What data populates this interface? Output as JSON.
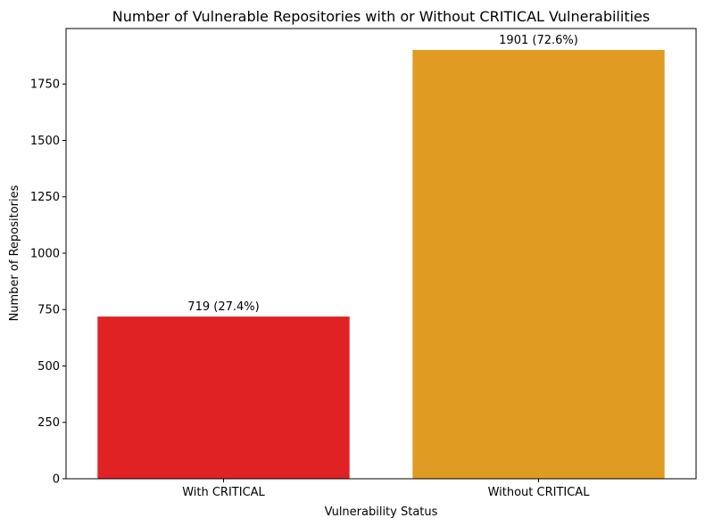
{
  "chart_data": {
    "type": "bar",
    "title": "Number of Vulnerable Repositories with or Without CRITICAL Vulnerabilities",
    "xlabel": "Vulnerability Status",
    "ylabel": "Number of Repositories",
    "categories": [
      "With CRITICAL",
      "Without CRITICAL"
    ],
    "values": [
      719,
      1901
    ],
    "data_labels": [
      "719 (27.4%)",
      "1901 (72.6%)"
    ],
    "colors": [
      "#e02224",
      "#e09c22"
    ],
    "ylim": [
      0,
      1996
    ],
    "y_ticks": [
      0,
      250,
      500,
      750,
      1000,
      1250,
      1500,
      1750
    ],
    "grid": false,
    "legend": "none"
  }
}
